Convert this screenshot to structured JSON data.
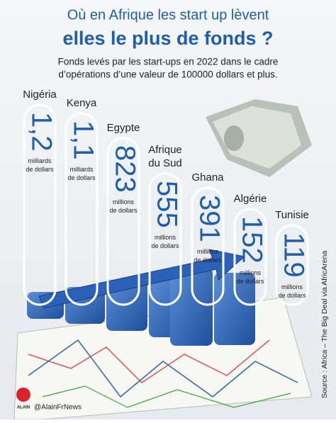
{
  "header": {
    "title_line1": "Où en Afrique les start up lèvent",
    "title_line2": "elles le plus de fonds ?",
    "subtitle_line1": "Fonds levés par les start-ups en 2022 dans le cadre",
    "subtitle_line2": "d’opérations d’une valeur de 100000 dollars et plus."
  },
  "items": [
    {
      "country": [
        "Nigéria"
      ],
      "value": "1,2",
      "unit": [
        "milliards",
        "de dollars"
      ]
    },
    {
      "country": [
        "Kenya"
      ],
      "value": "1,1",
      "unit": [
        "milliards",
        "de dollars"
      ]
    },
    {
      "country": [
        "Egypte"
      ],
      "value": "823",
      "unit": [
        "millions",
        "de dollars"
      ]
    },
    {
      "country": [
        "Afrique",
        "du Sud"
      ],
      "value": "555",
      "unit": [
        "millions",
        "de dollars"
      ]
    },
    {
      "country": [
        "Ghana"
      ],
      "value": "391",
      "unit": [
        "millions",
        "de dollars"
      ]
    },
    {
      "country": [
        "Algérie"
      ],
      "value": "152",
      "unit": [
        "millions",
        "de dollars"
      ]
    },
    {
      "country": [
        "Tunisie"
      ],
      "value": "119",
      "unit": [
        "millions",
        "de dollars"
      ]
    }
  ],
  "source": "Source : Africa – The Big Deal via AfricArena",
  "credit": {
    "logo": "ALAIN",
    "handle": "@AlainFrNews"
  }
}
